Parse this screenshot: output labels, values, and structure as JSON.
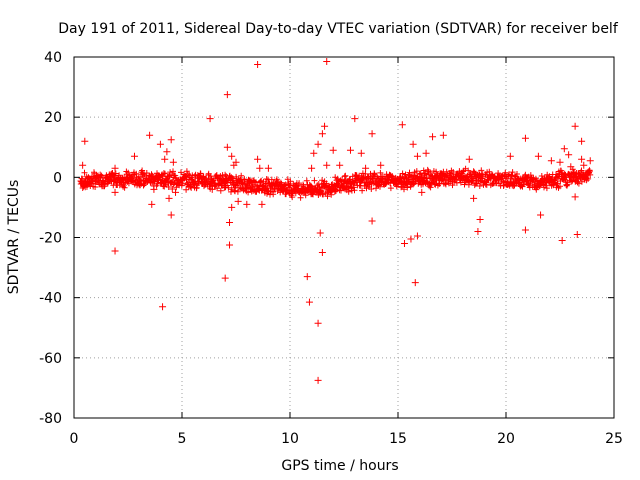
{
  "chart_data": {
    "type": "scatter",
    "title": "Day 191 of 2011, Sidereal Day-to-day VTEC variation (SDTVAR) for receiver belf",
    "xlabel": "GPS time / hours",
    "ylabel": "SDTVAR / TECUs",
    "xlim": [
      0,
      25
    ],
    "ylim": [
      -80,
      40
    ],
    "xticks": [
      0,
      5,
      10,
      15,
      20,
      25
    ],
    "yticks": [
      -80,
      -60,
      -40,
      -20,
      0,
      20,
      40
    ],
    "grid": true,
    "marker": "+",
    "color": "#ff0000",
    "dense_band": [
      {
        "x": 0.3,
        "y": -1.5
      },
      {
        "x": 1.0,
        "y": -1.0
      },
      {
        "x": 2.0,
        "y": -0.8
      },
      {
        "x": 3.0,
        "y": -0.6
      },
      {
        "x": 4.0,
        "y": -0.5
      },
      {
        "x": 5.0,
        "y": -1.0
      },
      {
        "x": 6.0,
        "y": -1.0
      },
      {
        "x": 7.0,
        "y": -1.5
      },
      {
        "x": 8.0,
        "y": -2.5
      },
      {
        "x": 9.0,
        "y": -3.0
      },
      {
        "x": 10.0,
        "y": -3.5
      },
      {
        "x": 11.0,
        "y": -4.0
      },
      {
        "x": 12.0,
        "y": -3.0
      },
      {
        "x": 13.0,
        "y": -1.5
      },
      {
        "x": 14.0,
        "y": -1.0
      },
      {
        "x": 15.0,
        "y": -1.0
      },
      {
        "x": 16.0,
        "y": -0.5
      },
      {
        "x": 17.0,
        "y": -0.5
      },
      {
        "x": 18.0,
        "y": 0.0
      },
      {
        "x": 19.0,
        "y": -0.5
      },
      {
        "x": 20.0,
        "y": -1.0
      },
      {
        "x": 21.0,
        "y": -1.5
      },
      {
        "x": 22.0,
        "y": -1.5
      },
      {
        "x": 23.0,
        "y": 0.0
      },
      {
        "x": 23.9,
        "y": 1.0
      }
    ],
    "points": [
      [
        0.5,
        12
      ],
      [
        0.4,
        4
      ],
      [
        0.6,
        -3
      ],
      [
        1.9,
        -24.5
      ],
      [
        1.9,
        3
      ],
      [
        1.9,
        -5
      ],
      [
        2.8,
        7
      ],
      [
        3.5,
        14
      ],
      [
        3.6,
        -9
      ],
      [
        3.7,
        -4
      ],
      [
        4.0,
        11
      ],
      [
        4.1,
        -43
      ],
      [
        4.2,
        6
      ],
      [
        4.3,
        8.5
      ],
      [
        4.4,
        -7
      ],
      [
        4.5,
        12.5
      ],
      [
        4.5,
        -12.5
      ],
      [
        4.6,
        5
      ],
      [
        4.7,
        -5
      ],
      [
        6.3,
        19.5
      ],
      [
        6.4,
        -4
      ],
      [
        7.0,
        -33.5
      ],
      [
        7.1,
        27.5
      ],
      [
        7.1,
        10
      ],
      [
        7.2,
        -22.5
      ],
      [
        7.2,
        -15
      ],
      [
        7.3,
        7
      ],
      [
        7.3,
        -10
      ],
      [
        7.4,
        4
      ],
      [
        7.5,
        5
      ],
      [
        7.6,
        -8
      ],
      [
        8.0,
        -9
      ],
      [
        8.5,
        37.5
      ],
      [
        8.5,
        6
      ],
      [
        8.6,
        3
      ],
      [
        8.7,
        -9
      ],
      [
        9.0,
        3
      ],
      [
        9.7,
        -4
      ],
      [
        10.8,
        -33
      ],
      [
        10.9,
        -41.5
      ],
      [
        11.0,
        3
      ],
      [
        11.1,
        8
      ],
      [
        11.3,
        -67.5
      ],
      [
        11.3,
        -48.5
      ],
      [
        11.3,
        11
      ],
      [
        11.4,
        -18.5
      ],
      [
        11.5,
        -25
      ],
      [
        11.5,
        14.5
      ],
      [
        11.6,
        17
      ],
      [
        11.7,
        38.5
      ],
      [
        11.7,
        4
      ],
      [
        12.0,
        9
      ],
      [
        12.3,
        4
      ],
      [
        12.8,
        9
      ],
      [
        13.0,
        19.5
      ],
      [
        13.3,
        8
      ],
      [
        13.5,
        3
      ],
      [
        13.8,
        14.5
      ],
      [
        13.8,
        -14.5
      ],
      [
        14.2,
        4
      ],
      [
        15.2,
        17.5
      ],
      [
        15.3,
        -22
      ],
      [
        15.6,
        -20.5
      ],
      [
        15.8,
        -35
      ],
      [
        15.9,
        -19.5
      ],
      [
        15.7,
        11
      ],
      [
        15.9,
        7
      ],
      [
        16.1,
        -5
      ],
      [
        16.3,
        8
      ],
      [
        16.6,
        13.5
      ],
      [
        17.1,
        14
      ],
      [
        18.3,
        6
      ],
      [
        18.5,
        -7
      ],
      [
        18.7,
        -18
      ],
      [
        18.8,
        -14
      ],
      [
        20.2,
        7
      ],
      [
        20.9,
        13
      ],
      [
        20.9,
        -17.5
      ],
      [
        21.5,
        7
      ],
      [
        21.6,
        -12.5
      ],
      [
        22.1,
        5.5
      ],
      [
        22.5,
        5
      ],
      [
        22.6,
        -21
      ],
      [
        22.7,
        9.5
      ],
      [
        22.9,
        7.5
      ],
      [
        23.0,
        3.5
      ],
      [
        23.2,
        -6.5
      ],
      [
        23.2,
        17
      ],
      [
        23.3,
        -19
      ],
      [
        23.5,
        12
      ],
      [
        23.5,
        6
      ],
      [
        23.6,
        4
      ],
      [
        23.9,
        5.5
      ]
    ]
  }
}
